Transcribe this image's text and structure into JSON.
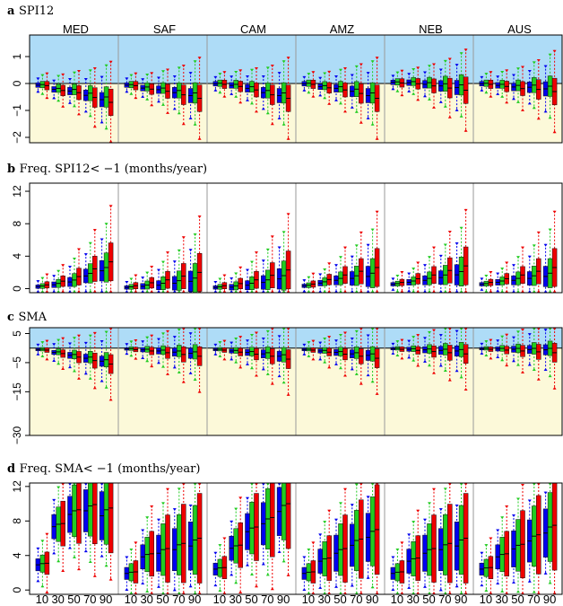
{
  "chart_data": {
    "type": "boxplot",
    "regions": [
      "MED",
      "SAF",
      "CAM",
      "AMZ",
      "NEB",
      "AUS"
    ],
    "categories": [
      "10",
      "30",
      "50",
      "70",
      "90"
    ],
    "series": [
      {
        "color": "#0000ee"
      },
      {
        "color": "#22cc22"
      },
      {
        "color": "#ee0000"
      }
    ],
    "panels": [
      {
        "letter": "a",
        "title": "SPI12",
        "ylim": [
          -2.2,
          1.8
        ],
        "yticks": [
          1,
          0,
          -1,
          -2
        ],
        "tick_labels": [
          "1",
          "0",
          "−1",
          "−2"
        ],
        "positive_shading": "#aedcf7",
        "negative_shading": "#fcf9d9",
        "show_regions": true,
        "base_medians": {
          "MED": [
            -0.05,
            -0.2,
            -0.25,
            -0.4,
            -0.55
          ],
          "SAF": [
            -0.05,
            -0.15,
            -0.2,
            -0.3,
            -0.4
          ],
          "CAM": [
            0,
            -0.05,
            -0.15,
            -0.3,
            -0.4
          ],
          "AMZ": [
            0,
            -0.1,
            -0.15,
            -0.25,
            -0.4
          ],
          "NEB": [
            0.05,
            0.05,
            0,
            -0.05,
            -0.1
          ],
          "AUS": [
            0,
            -0.05,
            -0.1,
            -0.1,
            -0.15
          ]
        },
        "model_shifts": [
          -0.05,
          0.05,
          -0.15
        ],
        "iqr": [
          0.12,
          0.15,
          0.2,
          0.28,
          0.38
        ],
        "whisker": [
          0.35,
          0.45,
          0.6,
          0.8,
          1.1
        ]
      },
      {
        "letter": "b",
        "title": "Freq. SPI12< −1 (months/year)",
        "ylim": [
          -0.5,
          13
        ],
        "yticks": [
          0,
          4,
          8,
          12
        ],
        "tick_labels": [
          "0",
          "4",
          "8",
          "12"
        ],
        "show_regions": false,
        "base_medians": {
          "MED": [
            0.3,
            0.6,
            1.0,
            1.8,
            2.5
          ],
          "SAF": [
            0.2,
            0.4,
            0.6,
            0.9,
            1.2
          ],
          "CAM": [
            0.2,
            0.3,
            0.6,
            1.0,
            1.5
          ],
          "AMZ": [
            0.4,
            0.8,
            1.2,
            1.5,
            1.8
          ],
          "NEB": [
            0.6,
            0.9,
            1.2,
            1.6,
            2.0
          ],
          "AUS": [
            0.6,
            0.9,
            1.2,
            1.5,
            1.8
          ]
        },
        "model_shifts": [
          -0.3,
          0.1,
          0.8
        ],
        "iqr": [
          0.3,
          0.5,
          0.8,
          1.2,
          1.8
        ],
        "whisker": [
          1.0,
          1.5,
          2.5,
          3.5,
          5.0
        ]
      },
      {
        "letter": "c",
        "title": "SMA",
        "ylim": [
          -30,
          7
        ],
        "yticks": [
          5,
          -5,
          -15,
          -30
        ],
        "tick_labels": [
          "5",
          "−5",
          "−15",
          "−30"
        ],
        "positive_shading": "#aedcf7",
        "negative_shading": "#fcf9d9",
        "show_regions": false,
        "base_medians": {
          "MED": [
            -0.5,
            -1.5,
            -2.5,
            -3.5,
            -4.5
          ],
          "SAF": [
            -0.3,
            -0.6,
            -1.0,
            -1.4,
            -1.8
          ],
          "CAM": [
            -0.5,
            -1.0,
            -1.5,
            -2.0,
            -2.8
          ],
          "AMZ": [
            -0.5,
            -1.0,
            -1.5,
            -2.0,
            -2.5
          ],
          "NEB": [
            -0.2,
            -0.4,
            -0.6,
            -0.8,
            -1.0
          ],
          "AUS": [
            -0.2,
            -0.3,
            -0.4,
            -0.5,
            -0.6
          ]
        },
        "model_shifts": [
          0,
          0.5,
          -1.0
        ],
        "iqr": [
          0.6,
          1.0,
          1.5,
          2.0,
          2.5
        ],
        "whisker": [
          2.5,
          4,
          5.5,
          7,
          9
        ]
      },
      {
        "letter": "d",
        "title": "Freq. SMA< −1 (months/year)",
        "ylim": [
          -0.5,
          12.4
        ],
        "yticks": [
          0,
          4,
          8,
          12
        ],
        "tick_labels": [
          "0",
          "4",
          "8",
          "12"
        ],
        "show_regions": false,
        "show_xticks": true,
        "base_medians": {
          "MED": [
            3.0,
            7.5,
            9.0,
            9.5,
            9.0
          ],
          "SAF": [
            2.0,
            4.0,
            4.5,
            5.0,
            5.5
          ],
          "CAM": [
            2.5,
            5.0,
            7.0,
            8.0,
            9.5
          ],
          "AMZ": [
            2.0,
            3.5,
            4.5,
            5.5,
            6.5
          ],
          "NEB": [
            2.0,
            3.5,
            4.5,
            5.0,
            5.5
          ],
          "AUS": [
            2.5,
            4.0,
            5.0,
            6.0,
            7.0
          ]
        },
        "model_shifts": [
          -0.4,
          0.3,
          0.5
        ],
        "iqr": [
          1.0,
          2.0,
          3.0,
          3.5,
          4.0
        ],
        "whisker": [
          2.5,
          4,
          5,
          6,
          6
        ]
      }
    ]
  }
}
